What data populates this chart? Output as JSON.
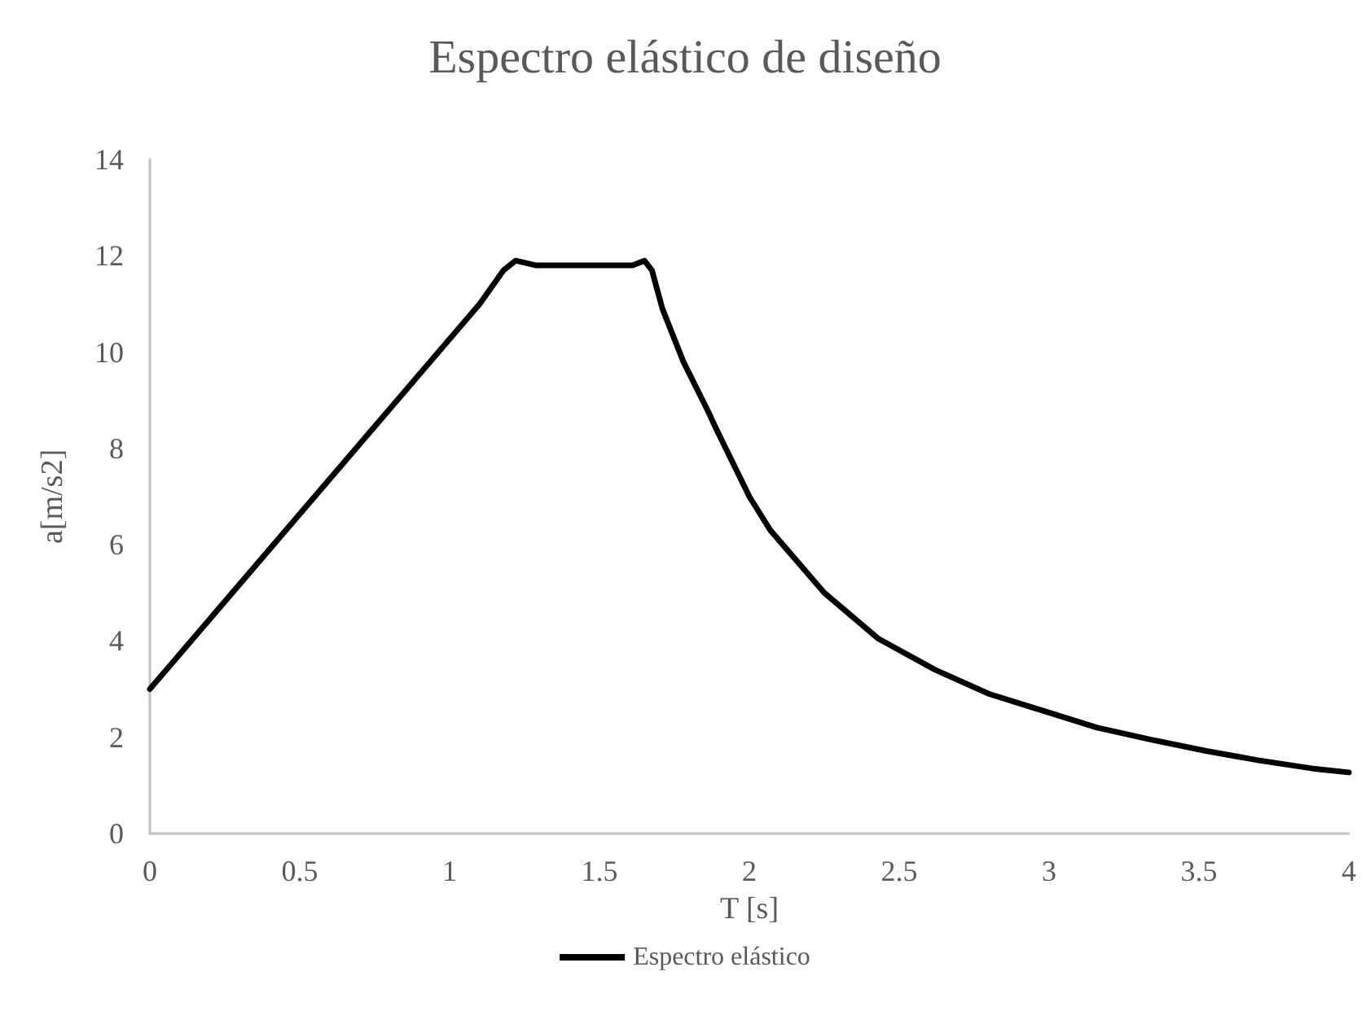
{
  "chart_data": {
    "type": "line",
    "title": "Espectro elástico de diseño",
    "xlabel": "T [s]",
    "ylabel": "a[m/s2]",
    "xlim": [
      0,
      4
    ],
    "xticks": [
      0,
      0.5,
      1,
      1.5,
      2,
      2.5,
      3,
      3.5,
      4
    ],
    "ylim": [
      0,
      14
    ],
    "yticks": [
      0,
      2,
      4,
      6,
      8,
      10,
      12,
      14
    ],
    "grid": false,
    "legend": "bottom",
    "marker": "none",
    "line_style": "solid",
    "series": [
      {
        "name": "Espectro elástico",
        "color": "#000000",
        "x": [
          0,
          1.1,
          1.18,
          1.22,
          1.29,
          1.61,
          1.65,
          1.675,
          1.71,
          1.78,
          1.86,
          1.89,
          2.0,
          2.07,
          2.25,
          2.43,
          2.62,
          2.8,
          2.98,
          3.16,
          3.34,
          3.52,
          3.7,
          3.88,
          4
        ],
        "values": [
          3.0,
          11.0,
          11.7,
          11.9,
          11.8,
          11.8,
          11.9,
          11.7,
          10.9,
          9.8,
          8.8,
          8.4,
          7.0,
          6.3,
          5.0,
          4.05,
          3.4,
          2.9,
          2.55,
          2.2,
          1.95,
          1.72,
          1.52,
          1.35,
          1.27
        ]
      }
    ]
  }
}
